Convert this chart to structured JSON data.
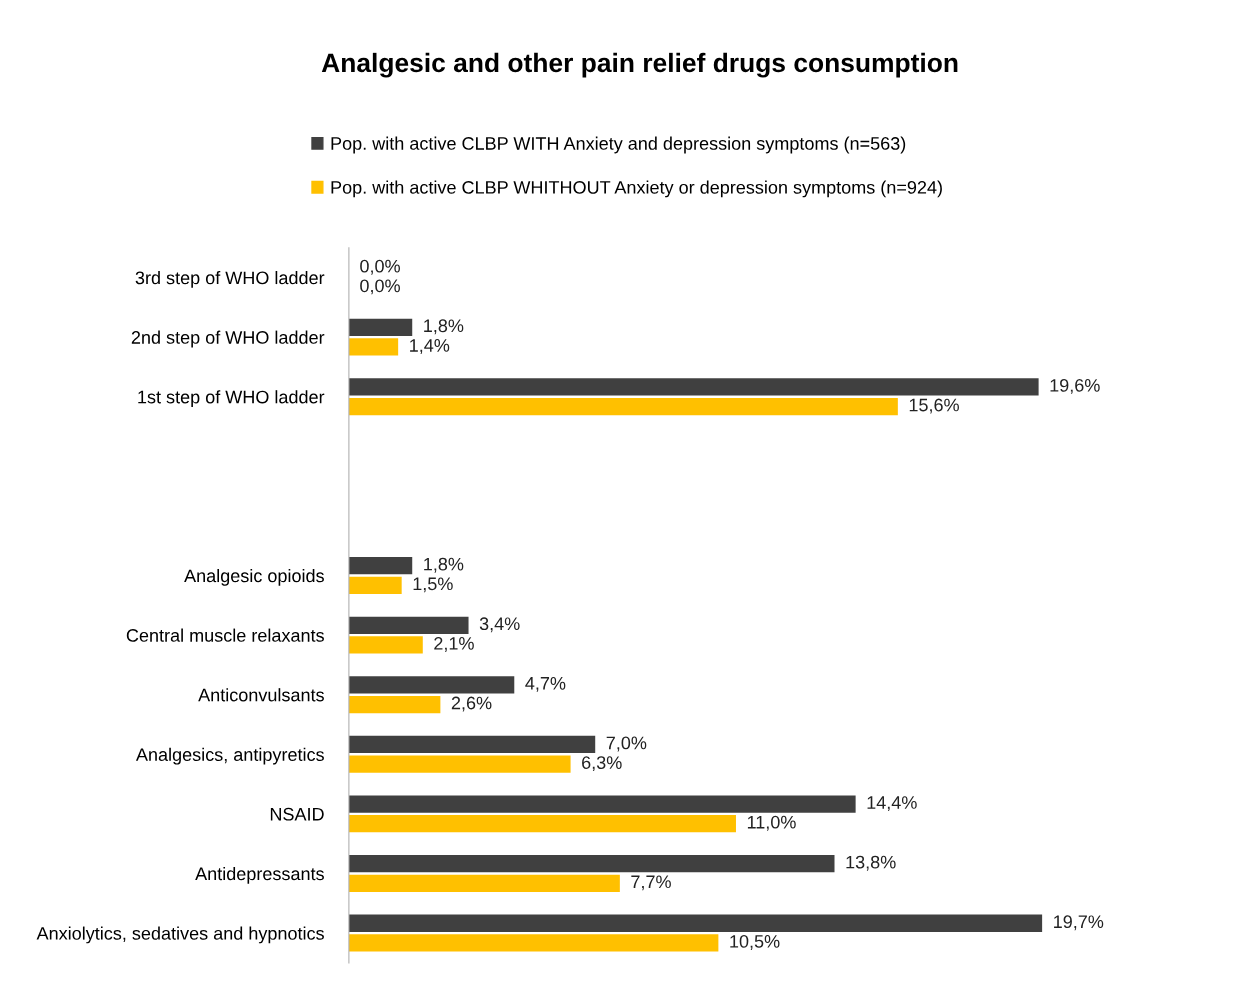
{
  "chart_data": {
    "type": "bar",
    "orientation": "horizontal",
    "title": "Analgesic and other pain relief drugs consumption",
    "categories": [
      "3rd step of WHO ladder",
      "2nd step of WHO ladder",
      "1st step of WHO ladder",
      null,
      null,
      "Analgesic opioids",
      "Central muscle relaxants",
      "Anticonvulsants",
      "Analgesics, antipyretics",
      "NSAID",
      "Antidepressants",
      "Anxiolytics, sedatives and hypnotics"
    ],
    "series": [
      {
        "name": "Pop. with active CLBP WITH Anxiety and depression symptoms (n=563)",
        "color": "#404040",
        "values": [
          0.0,
          1.8,
          19.6,
          null,
          null,
          1.8,
          3.4,
          4.7,
          7.0,
          14.4,
          13.8,
          19.7
        ],
        "value_labels": [
          "0,0%",
          "1,8%",
          "19,6%",
          null,
          null,
          "1,8%",
          "3,4%",
          "4,7%",
          "7,0%",
          "14,4%",
          "13,8%",
          "19,7%"
        ]
      },
      {
        "name": "Pop. with active CLBP WHITHOUT Anxiety or depression symptoms (n=924)",
        "color": "#ffc000",
        "values": [
          0.0,
          1.4,
          15.6,
          null,
          null,
          1.5,
          2.1,
          2.6,
          6.3,
          11.0,
          7.7,
          10.5
        ],
        "value_labels": [
          "0,0%",
          "1,4%",
          "15,6%",
          null,
          null,
          "1,5%",
          "2,1%",
          "2,6%",
          "6,3%",
          "11,0%",
          "7,7%",
          "10,5%"
        ]
      }
    ],
    "tick_labels": "y",
    "grid": false,
    "legend": "top"
  }
}
